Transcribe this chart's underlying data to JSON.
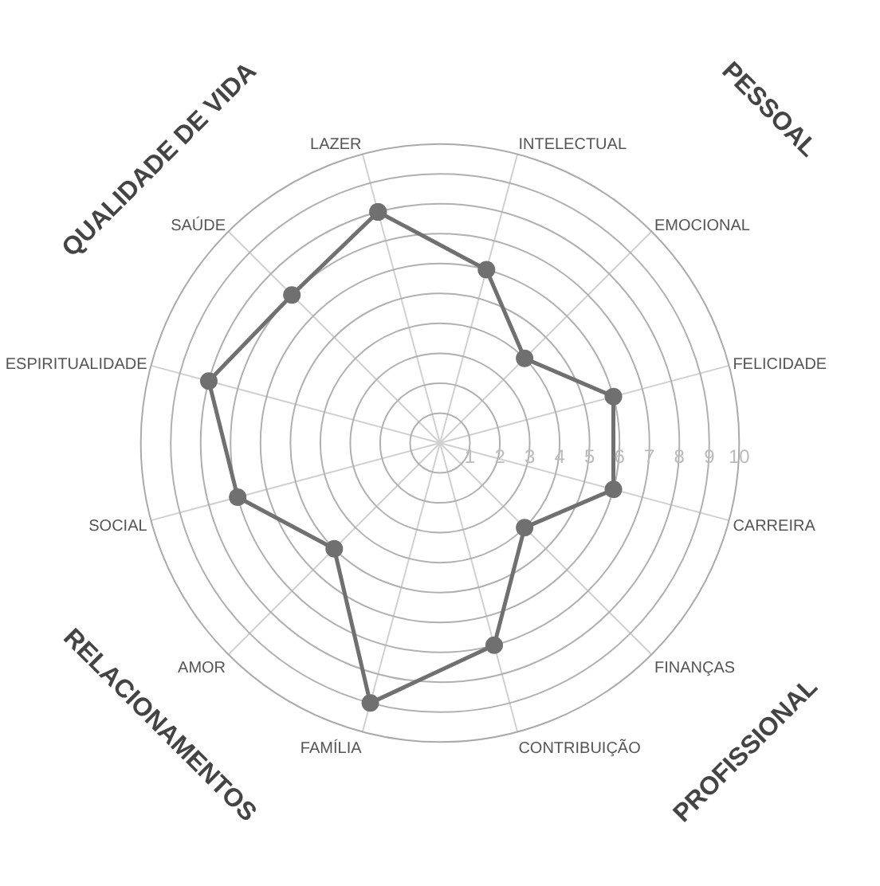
{
  "chart_data": {
    "type": "radar",
    "categories": [
      "LAZER",
      "INTELECTUAL",
      "EMOCIONAL",
      "FELICIDADE",
      "CARREIRA",
      "FINANÇAS",
      "CONTRIBUIÇÃO",
      "FAMÍLIA",
      "AMOR",
      "SOCIAL",
      "ESPIRITUALIDADE",
      "SAÚDE"
    ],
    "series": [
      {
        "color": "#707070",
        "values": [
          8,
          6,
          4,
          6,
          6,
          4,
          7,
          9,
          5,
          7,
          8,
          7
        ]
      }
    ],
    "ylim": [
      0,
      10
    ],
    "yticks": [
      1,
      2,
      3,
      4,
      5,
      6,
      7,
      8,
      9,
      10
    ],
    "grid": true,
    "marker": "circle",
    "line_style": "solid",
    "annotations": [
      "QUALIDADE DE VIDA",
      "PESSOAL",
      "PROFISSIONAL",
      "RELACIONAMENTOS"
    ]
  }
}
